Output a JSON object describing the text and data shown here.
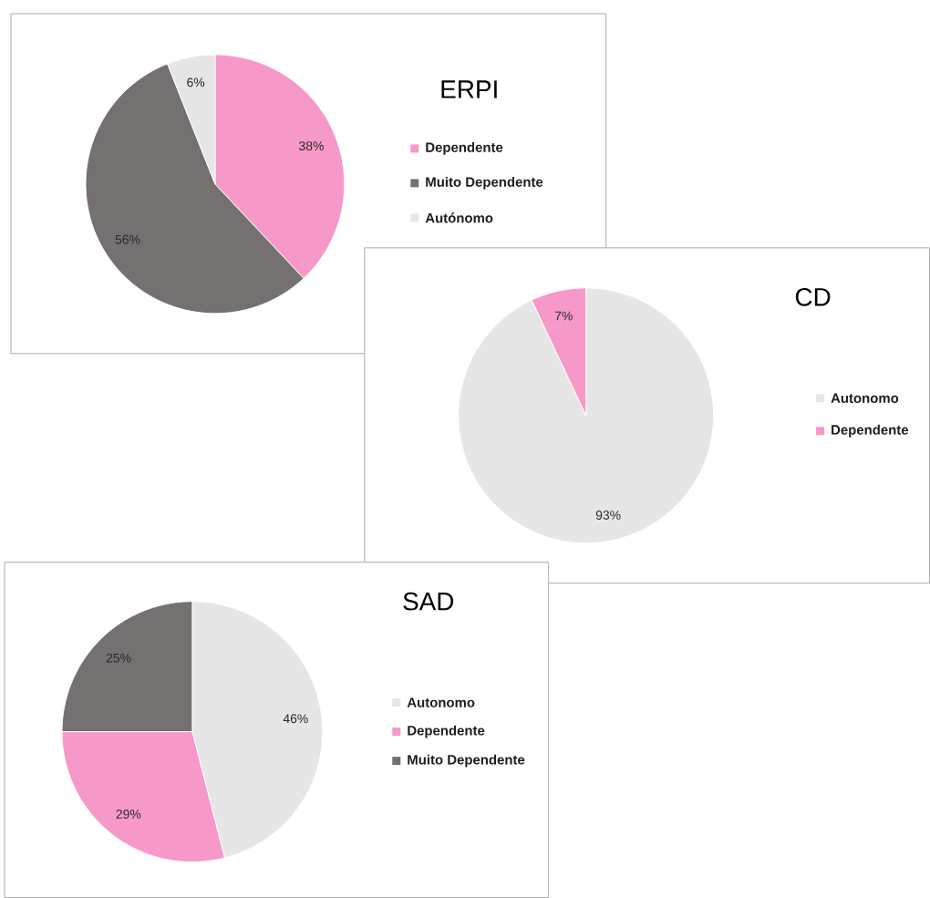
{
  "chart_data": [
    {
      "type": "pie",
      "title": "ERPI",
      "categories": [
        "Dependente",
        "Muito Dependente",
        "Autónomo"
      ],
      "values": [
        38,
        56,
        6
      ],
      "colors": [
        "#f799c8",
        "#767171",
        "#e6e6e6"
      ],
      "value_labels": [
        "38%",
        "56%",
        "6%"
      ],
      "legend": "right"
    },
    {
      "type": "pie",
      "title": "CD",
      "categories": [
        "Autonomo",
        "Dependente"
      ],
      "values": [
        93,
        7
      ],
      "colors": [
        "#e6e6e6",
        "#f799c8"
      ],
      "value_labels": [
        "93%",
        "7%"
      ],
      "legend": "right"
    },
    {
      "type": "pie",
      "title": "SAD",
      "categories": [
        "Autonomo",
        "Dependente",
        "Muito Dependente"
      ],
      "values": [
        46,
        29,
        25
      ],
      "colors": [
        "#e6e6e6",
        "#f799c8",
        "#767171"
      ],
      "value_labels": [
        "46%",
        "29%",
        "25%"
      ],
      "legend": "right"
    }
  ]
}
